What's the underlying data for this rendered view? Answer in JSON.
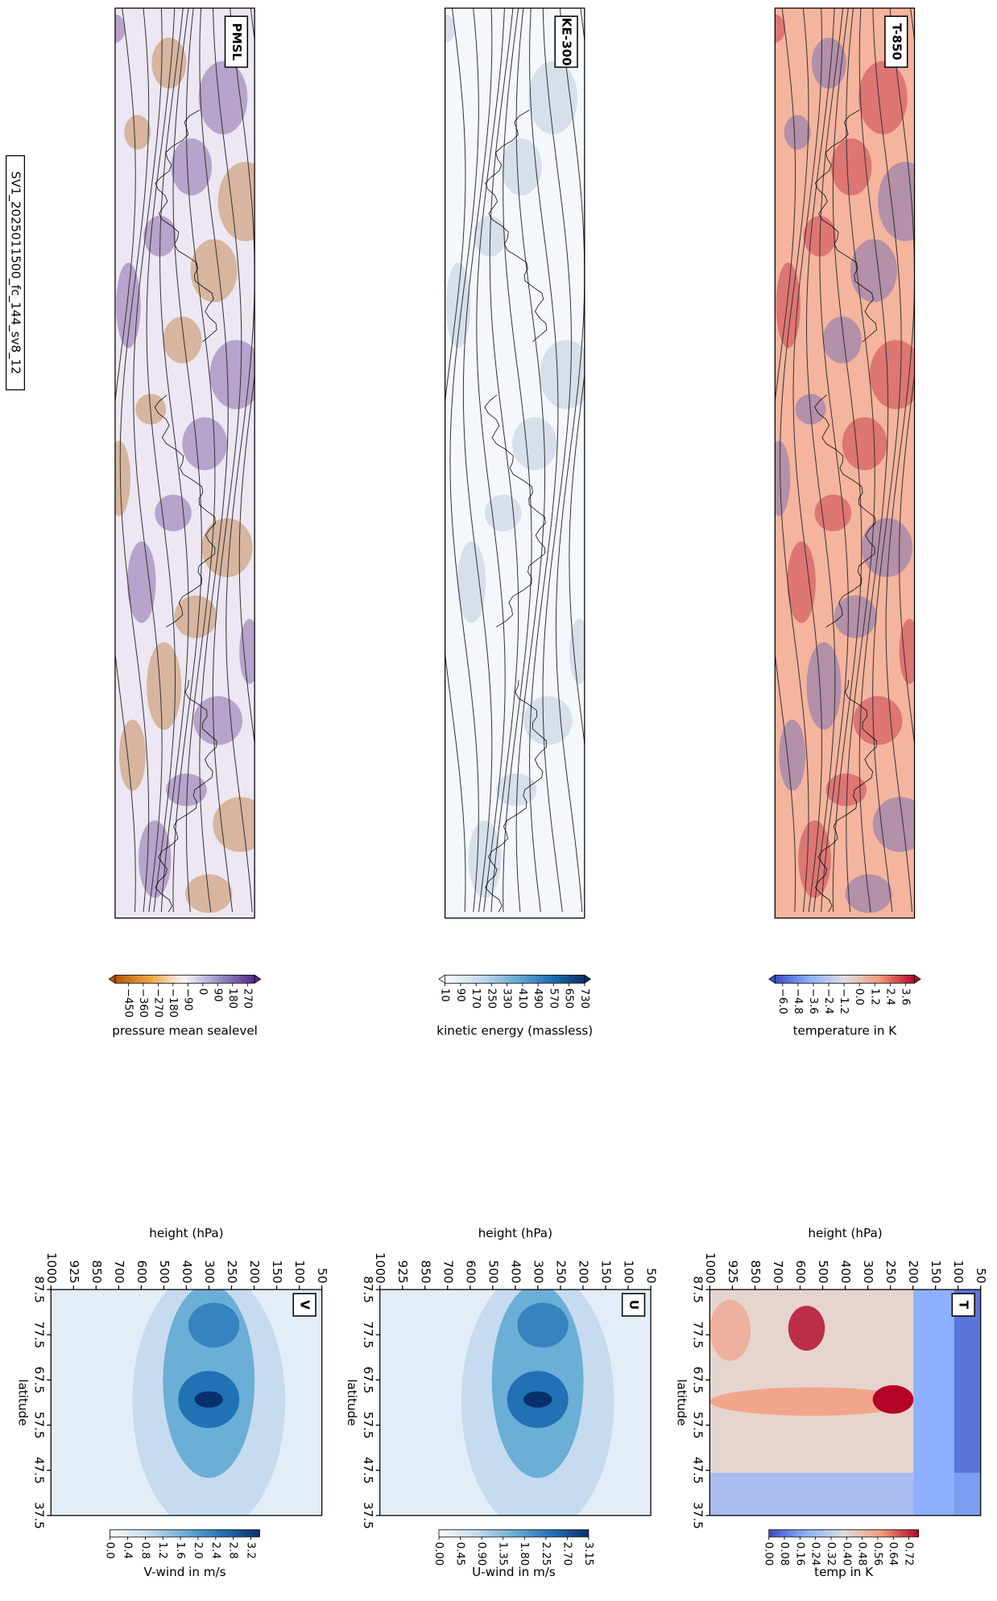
{
  "figure_title": "SV1_2025011500_fc_144_sv8_12",
  "chart_data": [
    {
      "type": "map",
      "label": "PMSL",
      "background": "#ece7f2",
      "colorbar": {
        "label": "pressure mean sealevel",
        "clim": [
          -530,
          313
        ],
        "extend": true,
        "colors": [
          "#b35806",
          "#f1a340",
          "#f7f7f7",
          "#998ec3",
          "#542788"
        ],
        "ticks": [
          {
            "value": -450,
            "label": "−450"
          },
          {
            "value": -360,
            "label": "−360"
          },
          {
            "value": -270,
            "label": "−270"
          },
          {
            "value": -180,
            "label": "−180"
          },
          {
            "value": -90,
            "label": "−90"
          },
          0,
          90,
          180,
          270
        ]
      }
    },
    {
      "type": "map",
      "label": "KE-300",
      "background": "#f4f8fd",
      "colorbar": {
        "label": "kinetic energy (massless)",
        "clim": [
          10,
          730
        ],
        "extend": true,
        "colors": [
          "#f7fbff",
          "#c6dbef",
          "#6baed6",
          "#2171b5",
          "#08306b"
        ],
        "ticks": [
          10,
          90,
          170,
          250,
          330,
          410,
          490,
          570,
          650,
          730
        ]
      }
    },
    {
      "type": "map",
      "label": "T-850",
      "background": "#f5b49d",
      "colorbar": {
        "label": "temperature in K",
        "clim": [
          -6.6,
          4.3
        ],
        "extend": true,
        "colors": [
          "#3b4cc0",
          "#8db0fe",
          "#dddddd",
          "#f49a7b",
          "#b40426"
        ],
        "ticks": [
          {
            "value": -6,
            "label": "−6.0"
          },
          {
            "value": -4.8,
            "label": "−4.8"
          },
          {
            "value": -3.6,
            "label": "−3.6"
          },
          {
            "value": -2.4,
            "label": "−2.4"
          },
          {
            "value": -1.2,
            "label": "−1.2"
          },
          {
            "value": 0,
            "label": "0.0"
          },
          1.2,
          2.4,
          3.6
        ]
      }
    },
    {
      "type": "heatmap",
      "label": "V",
      "x_label": "height (hPa)",
      "y_label": "latitude",
      "x_categories": [
        1000,
        925,
        850,
        700,
        600,
        500,
        400,
        300,
        250,
        200,
        150,
        100,
        50
      ],
      "ylim": [
        87.5,
        37.5
      ],
      "yticks": [
        87.5,
        77.5,
        67.5,
        57.5,
        47.5,
        37.5
      ],
      "colorbar": {
        "label": "V-wind in m/s",
        "clim": [
          0,
          3.4
        ],
        "extend": false,
        "colors": [
          "#f7fbff",
          "#c6dbef",
          "#6baed6",
          "#2171b5",
          "#08306b"
        ],
        "ticks": [
          {
            "value": 0,
            "label": "0.0"
          },
          0.4,
          0.8,
          1.2,
          1.6,
          {
            "value": 2,
            "label": "2.0"
          },
          2.4,
          2.8,
          3.2
        ]
      }
    },
    {
      "type": "heatmap",
      "label": "U",
      "x_label": "height (hPa)",
      "y_label": "latitude",
      "x_categories": [
        1000,
        925,
        850,
        700,
        600,
        500,
        400,
        300,
        250,
        200,
        150,
        100,
        50
      ],
      "ylim": [
        87.5,
        37.5
      ],
      "yticks": [
        87.5,
        77.5,
        67.5,
        57.5,
        47.5,
        37.5
      ],
      "colorbar": {
        "label": "U-wind in m/s",
        "clim": [
          0,
          3.15
        ],
        "extend": false,
        "colors": [
          "#f7fbff",
          "#c6dbef",
          "#6baed6",
          "#2171b5",
          "#08306b"
        ],
        "ticks": [
          {
            "value": 0,
            "label": "0.00"
          },
          0.45,
          {
            "value": 0.9,
            "label": "0.90"
          },
          1.35,
          {
            "value": 1.8,
            "label": "1.80"
          },
          2.25,
          {
            "value": 2.7,
            "label": "2.70"
          },
          3.15
        ]
      }
    },
    {
      "type": "heatmap",
      "label": "T",
      "x_label": "height (hPa)",
      "y_label": "latitude",
      "x_categories": [
        1000,
        925,
        850,
        700,
        600,
        500,
        400,
        300,
        250,
        200,
        150,
        100,
        50
      ],
      "ylim": [
        87.5,
        37.5
      ],
      "yticks": [
        87.5,
        77.5,
        67.5,
        57.5,
        47.5,
        37.5
      ],
      "colorbar": {
        "label": "temp in K",
        "clim": [
          0,
          0.77
        ],
        "extend": false,
        "colors": [
          "#3b4cc0",
          "#8db0fe",
          "#dddddd",
          "#f49a7b",
          "#b40426"
        ],
        "ticks": [
          {
            "value": 0,
            "label": "0.00"
          },
          0.08,
          0.16,
          0.24,
          0.32,
          {
            "value": 0.4,
            "label": "0.40"
          },
          0.48,
          0.56,
          0.64,
          0.72
        ]
      }
    }
  ]
}
